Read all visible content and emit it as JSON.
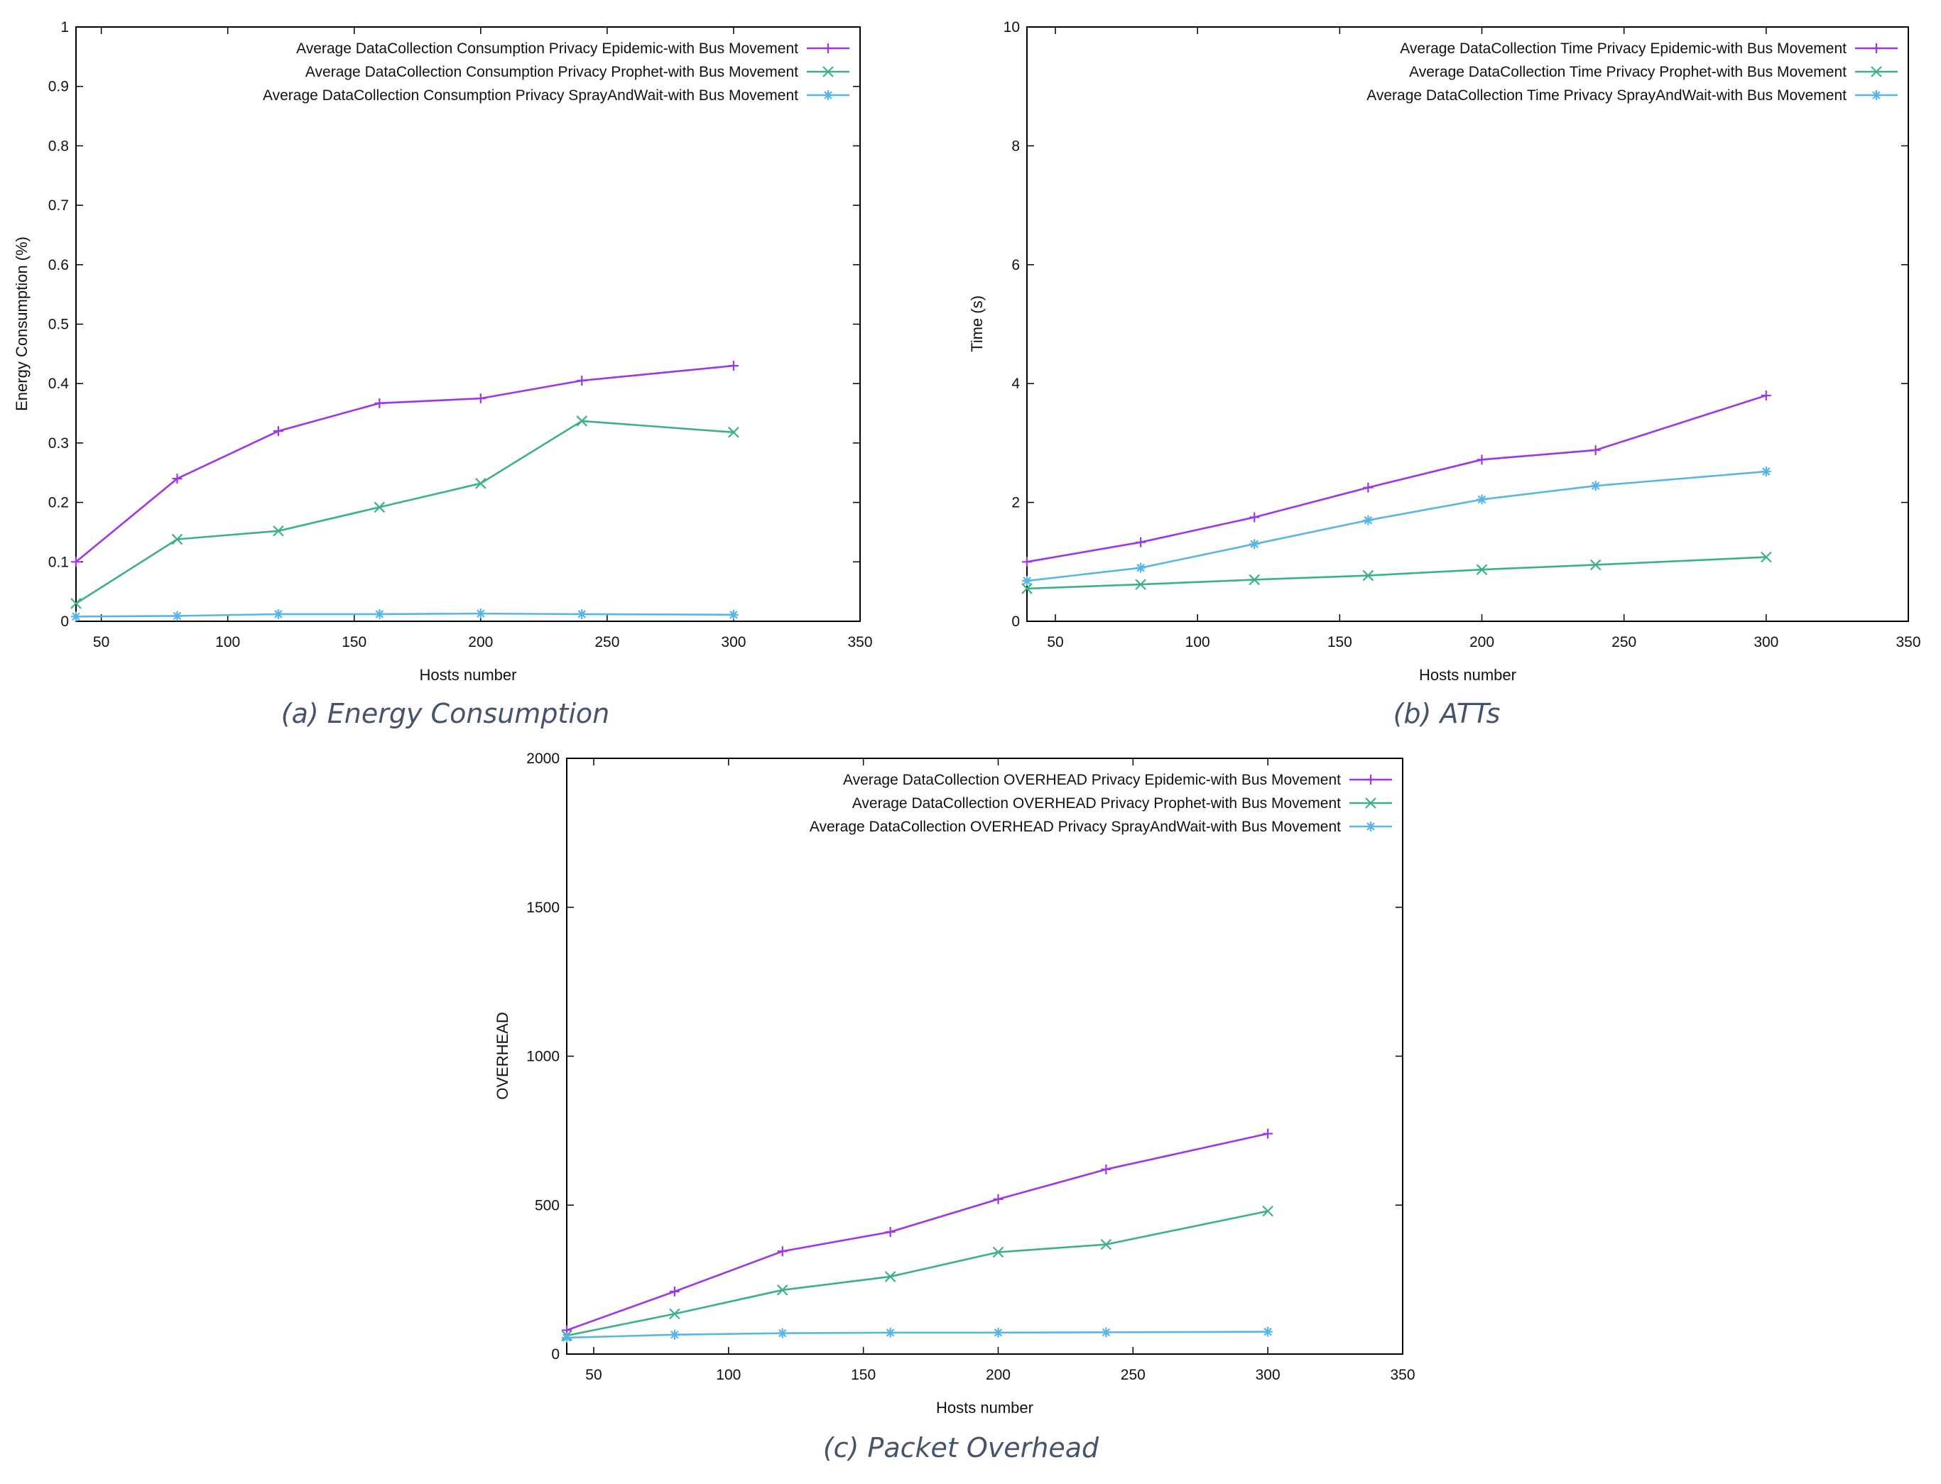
{
  "figure": {
    "panels_count": 3
  },
  "chart_data": [
    {
      "id": "energy",
      "type": "line",
      "caption": "(a) Energy Consumption",
      "xlabel": "Hosts number",
      "ylabel": "Energy Consumption (%)",
      "xlim": [
        40,
        350
      ],
      "ylim": [
        0,
        1
      ],
      "xticks": [
        50,
        100,
        150,
        200,
        250,
        300,
        350
      ],
      "xtick_labels": [
        "50",
        "100",
        "150",
        "200",
        "250",
        "300",
        "350"
      ],
      "yticks": [
        0,
        0.1,
        0.2,
        0.3,
        0.4,
        0.5,
        0.6,
        0.7,
        0.8,
        0.9,
        1
      ],
      "ytick_labels": [
        "0",
        "0.1",
        "0.2",
        "0.3",
        "0.4",
        "0.5",
        "0.6",
        "0.7",
        "0.8",
        "0.9",
        "1"
      ],
      "x": [
        40,
        80,
        120,
        160,
        200,
        240,
        300
      ],
      "legend_position": "top-right",
      "series": [
        {
          "name": "Average DataCollection Consumption Privacy Epidemic-with Bus Movement",
          "color": "#a035e8",
          "marker": "plus",
          "values": [
            0.1,
            0.24,
            0.32,
            0.367,
            0.375,
            0.405,
            0.43
          ]
        },
        {
          "name": "Average DataCollection Consumption Privacy Prophet-with Bus Movement",
          "color": "#3cb08a",
          "marker": "cross",
          "values": [
            0.03,
            0.138,
            0.152,
            0.192,
            0.232,
            0.337,
            0.318
          ]
        },
        {
          "name": "Average DataCollection Consumption Privacy SprayAndWait-with Bus Movement",
          "color": "#58b6e6",
          "marker": "star",
          "values": [
            0.008,
            0.009,
            0.012,
            0.012,
            0.013,
            0.012,
            0.011
          ]
        }
      ]
    },
    {
      "id": "atts",
      "type": "line",
      "caption": "(b) ATTs",
      "xlabel": "Hosts number",
      "ylabel": "Time (s)",
      "xlim": [
        40,
        350
      ],
      "ylim": [
        0,
        10
      ],
      "xticks": [
        50,
        100,
        150,
        200,
        250,
        300,
        350
      ],
      "xtick_labels": [
        "50",
        "100",
        "150",
        "200",
        "250",
        "300",
        "350"
      ],
      "yticks": [
        0,
        2,
        4,
        6,
        8,
        10
      ],
      "ytick_labels": [
        "0",
        "2",
        "4",
        "6",
        "8",
        "10"
      ],
      "x": [
        40,
        80,
        120,
        160,
        200,
        240,
        300
      ],
      "legend_position": "top-right",
      "series": [
        {
          "name": "Average DataCollection Time Privacy Epidemic-with Bus Movement",
          "color": "#a035e8",
          "marker": "plus",
          "values": [
            1.0,
            1.33,
            1.75,
            2.25,
            2.72,
            2.88,
            3.8
          ]
        },
        {
          "name": "Average DataCollection Time Privacy Prophet-with Bus Movement",
          "color": "#3cb08a",
          "marker": "cross",
          "values": [
            0.55,
            0.62,
            0.7,
            0.77,
            0.87,
            0.95,
            1.08
          ]
        },
        {
          "name": "Average DataCollection Time Privacy SprayAndWait-with Bus Movement",
          "color": "#58b6e6",
          "marker": "star",
          "values": [
            0.68,
            0.9,
            1.3,
            1.7,
            2.05,
            2.28,
            2.52
          ]
        }
      ]
    },
    {
      "id": "overhead",
      "type": "line",
      "caption": "(c)  Packet Overhead",
      "xlabel": "Hosts number",
      "ylabel": "OVERHEAD",
      "xlim": [
        40,
        350
      ],
      "ylim": [
        0,
        2000
      ],
      "xticks": [
        50,
        100,
        150,
        200,
        250,
        300,
        350
      ],
      "xtick_labels": [
        "50",
        "100",
        "150",
        "200",
        "250",
        "300",
        "350"
      ],
      "yticks": [
        0,
        500,
        1000,
        1500,
        2000
      ],
      "ytick_labels": [
        "0",
        "500",
        "1000",
        "1500",
        "2000"
      ],
      "x": [
        40,
        80,
        120,
        160,
        200,
        240,
        300
      ],
      "legend_position": "top-right",
      "series": [
        {
          "name": "Average DataCollection OVERHEAD Privacy Epidemic-with Bus Movement",
          "color": "#a035e8",
          "marker": "plus",
          "values": [
            80,
            210,
            345,
            410,
            520,
            620,
            740
          ]
        },
        {
          "name": "Average DataCollection OVERHEAD Privacy Prophet-with Bus Movement",
          "color": "#3cb08a",
          "marker": "cross",
          "values": [
            62,
            135,
            215,
            260,
            342,
            368,
            480
          ]
        },
        {
          "name": "Average DataCollection OVERHEAD Privacy SprayAndWait-with Bus Movement",
          "color": "#58b6e6",
          "marker": "star",
          "values": [
            55,
            65,
            70,
            72,
            72,
            73,
            75
          ]
        }
      ]
    }
  ]
}
